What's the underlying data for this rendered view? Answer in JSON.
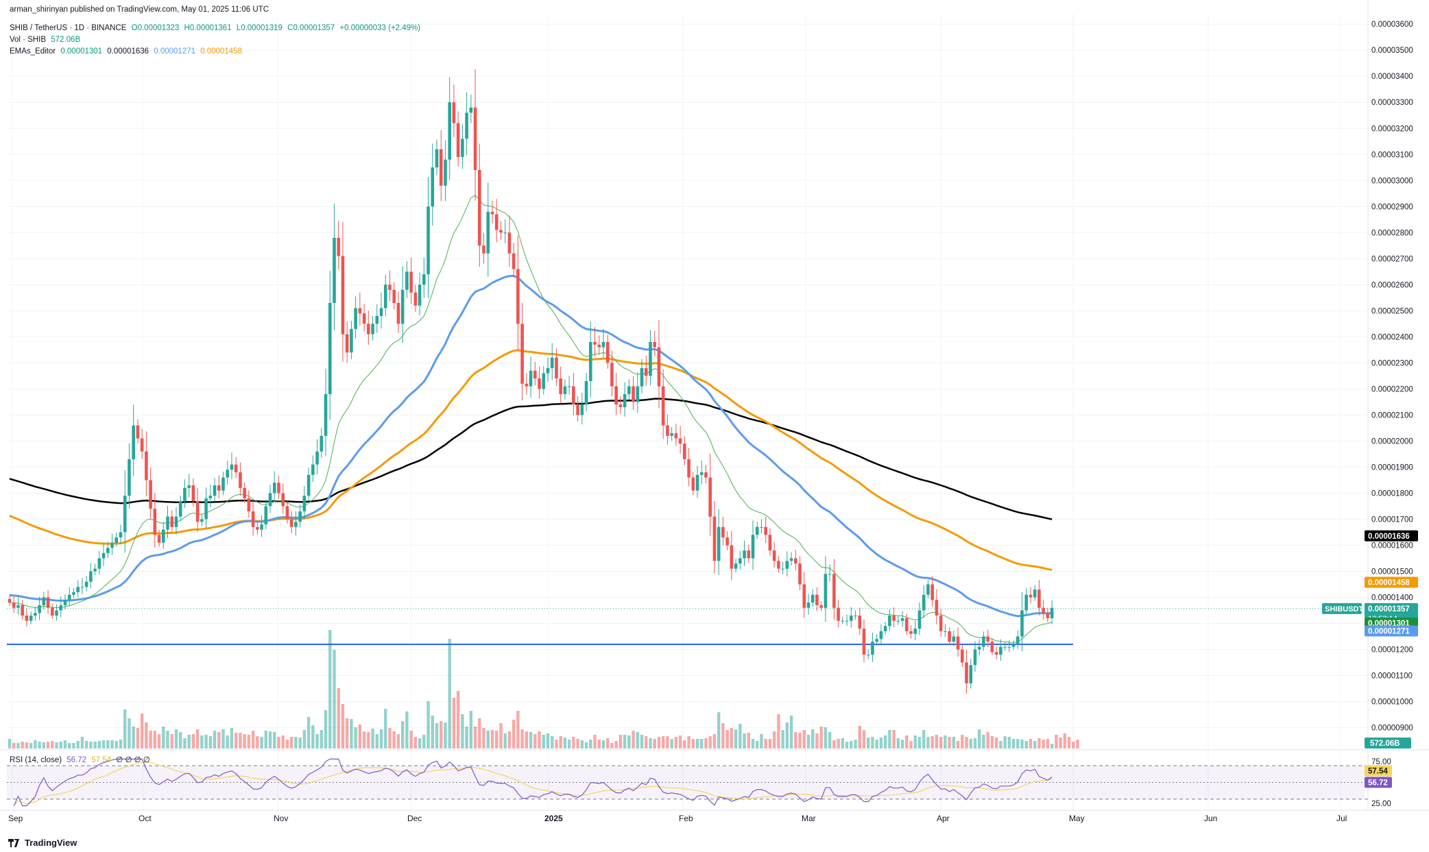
{
  "publisher": "arman_shirinyan published on TradingView.com, May 01, 2025 11:06 UTC",
  "symbol_line": {
    "symbol": "SHIB / TetherUS · 1D · BINANCE",
    "open": "O0.00001323",
    "high": "H0.00001361",
    "low": "L0.00001319",
    "close": "C0.00001357",
    "change": "+0.00000033 (+2.49%)"
  },
  "vol_line": {
    "label": "Vol · SHIB",
    "value": "572.06B"
  },
  "ema_line": {
    "label": "EMAs_Editor",
    "v1": "0.00001301",
    "v2": "0.00001636",
    "v3": "0.00001271",
    "v4": "0.00001458"
  },
  "rsi_line": {
    "label": "RSI (14, close)",
    "rsi": "56.72",
    "ma": "57.54",
    "extra": "∅ ∅ ∅ ∅"
  },
  "brand": "TradingView",
  "colors": {
    "up": "#26a69a",
    "down": "#ef5350",
    "ema_black": "#000000",
    "ema_orange": "#f59a00",
    "ema_blue": "#5b9bef",
    "ema_green": "#4caf50",
    "support": "#2962ff",
    "rsi": "#7e57c2",
    "rsi_ma": "#f7d55a"
  },
  "chart_data": [
    {
      "type": "candlestick",
      "title": "SHIB / TetherUS · 1D · BINANCE",
      "y_ticks": [
        "0.00000900",
        "0.00001000",
        "0.00001100",
        "0.00001200",
        "0.00001300",
        "0.00001400",
        "0.00001500",
        "0.00001600",
        "0.00001700",
        "0.00001800",
        "0.00001900",
        "0.00002000",
        "0.00002100",
        "0.00002200",
        "0.00002300",
        "0.00002400",
        "0.00002500",
        "0.00002600",
        "0.00002700",
        "0.00002800",
        "0.00002900",
        "0.00003000",
        "0.00003100",
        "0.00003200",
        "0.00003300",
        "0.00003400",
        "0.00003500",
        "0.00003600"
      ],
      "x_ticks": [
        "Sep",
        "Oct",
        "Nov",
        "Dec",
        "2025",
        "Feb",
        "Mar",
        "Apr",
        "May",
        "Jun",
        "Jul"
      ],
      "ylim": [
        8.2e-06,
        3.64e-05
      ],
      "price_labels": [
        {
          "name": "EMA black",
          "value": 1.636e-05,
          "text": "0.00001636",
          "color": "#000000"
        },
        {
          "name": "EMA orange",
          "value": 1.458e-05,
          "text": "0.00001458",
          "color": "#f59a00"
        },
        {
          "name": "SHIBUSDT",
          "value": 1.357e-05,
          "text": "0.00001357",
          "countdown": "12:53:14",
          "color": "#26a69a"
        },
        {
          "name": "EMA green",
          "value": 1.301e-05,
          "text": "0.00001301",
          "color": "#1b8f3a"
        },
        {
          "name": "EMA blue",
          "value": 1.271e-05,
          "text": "0.00001271",
          "color": "#5b9bef"
        }
      ],
      "symbol_tag": "SHIBUSDT",
      "support_level": 1.22e-05,
      "current_price": 1.357e-05,
      "closes": [
        1.38e-05,
        1.36e-05,
        1.37e-05,
        1.33e-05,
        1.31e-05,
        1.33e-05,
        1.34e-05,
        1.37e-05,
        1.4e-05,
        1.36e-05,
        1.33e-05,
        1.35e-05,
        1.37e-05,
        1.39e-05,
        1.41e-05,
        1.42e-05,
        1.44e-05,
        1.44e-05,
        1.46e-05,
        1.5e-05,
        1.51e-05,
        1.55e-05,
        1.57e-05,
        1.59e-05,
        1.61e-05,
        1.63e-05,
        1.65e-05,
        1.79e-05,
        1.93e-05,
        2.06e-05,
        2.01e-05,
        1.96e-05,
        1.85e-05,
        1.74e-05,
        1.64e-05,
        1.61e-05,
        1.66e-05,
        1.71e-05,
        1.67e-05,
        1.71e-05,
        1.77e-05,
        1.82e-05,
        1.83e-05,
        1.77e-05,
        1.69e-05,
        1.7e-05,
        1.78e-05,
        1.79e-05,
        1.83e-05,
        1.81e-05,
        1.86e-05,
        1.89e-05,
        1.91e-05,
        1.88e-05,
        1.82e-05,
        1.78e-05,
        1.73e-05,
        1.67e-05,
        1.66e-05,
        1.68e-05,
        1.75e-05,
        1.8e-05,
        1.84e-05,
        1.8e-05,
        1.75e-05,
        1.7e-05,
        1.67e-05,
        1.69e-05,
        1.73e-05,
        1.79e-05,
        1.87e-05,
        1.91e-05,
        1.96e-05,
        2.02e-05,
        2.18e-05,
        2.53e-05,
        2.78e-05,
        2.71e-05,
        2.41e-05,
        2.34e-05,
        2.43e-05,
        2.51e-05,
        2.49e-05,
        2.45e-05,
        2.41e-05,
        2.45e-05,
        2.48e-05,
        2.51e-05,
        2.6e-05,
        2.58e-05,
        2.53e-05,
        2.45e-05,
        2.58e-05,
        2.65e-05,
        2.57e-05,
        2.52e-05,
        2.6e-05,
        2.64e-05,
        2.9e-05,
        3.05e-05,
        3.12e-05,
        2.98e-05,
        3.08e-05,
        3.3e-05,
        3.22e-05,
        3.09e-05,
        3.16e-05,
        3.26e-05,
        3.28e-05,
        3.04e-05,
        2.75e-05,
        2.72e-05,
        2.88e-05,
        2.87e-05,
        2.81e-05,
        2.8e-05,
        2.8e-05,
        2.72e-05,
        2.66e-05,
        2.45e-05,
        2.22e-05,
        2.21e-05,
        2.27e-05,
        2.24e-05,
        2.2e-05,
        2.26e-05,
        2.28e-05,
        2.32e-05,
        2.24e-05,
        2.18e-05,
        2.21e-05,
        2.21e-05,
        2.14e-05,
        2.1e-05,
        2.14e-05,
        2.23e-05,
        2.38e-05,
        2.37e-05,
        2.36e-05,
        2.38e-05,
        2.3e-05,
        2.21e-05,
        2.14e-05,
        2.13e-05,
        2.18e-05,
        2.21e-05,
        2.15e-05,
        2.21e-05,
        2.28e-05,
        2.25e-05,
        2.38e-05,
        2.36e-05,
        2.21e-05,
        2.06e-05,
        2.02e-05,
        2.03e-05,
        2.01e-05,
        1.99e-05,
        1.93e-05,
        1.86e-05,
        1.81e-05,
        1.87e-05,
        1.88e-05,
        1.86e-05,
        1.71e-05,
        1.54e-05,
        1.67e-05,
        1.63e-05,
        1.6e-05,
        1.51e-05,
        1.53e-05,
        1.55e-05,
        1.58e-05,
        1.55e-05,
        1.64e-05,
        1.67e-05,
        1.67e-05,
        1.64e-05,
        1.58e-05,
        1.54e-05,
        1.51e-05,
        1.51e-05,
        1.54e-05,
        1.55e-05,
        1.53e-05,
        1.45e-05,
        1.36e-05,
        1.38e-05,
        1.41e-05,
        1.37e-05,
        1.36e-05,
        1.49e-05,
        1.49e-05,
        1.36e-05,
        1.31e-05,
        1.31e-05,
        1.31e-05,
        1.33e-05,
        1.33e-05,
        1.28e-05,
        1.18e-05,
        1.18e-05,
        1.23e-05,
        1.24e-05,
        1.27e-05,
        1.29e-05,
        1.33e-05,
        1.31e-05,
        1.31e-05,
        1.32e-05,
        1.27e-05,
        1.26e-05,
        1.28e-05,
        1.35e-05,
        1.41e-05,
        1.45e-05,
        1.39e-05,
        1.33e-05,
        1.27e-05,
        1.27e-05,
        1.23e-05,
        1.25e-05,
        1.2e-05,
        1.15e-05,
        1.07e-05,
        1.14e-05,
        1.2e-05,
        1.21e-05,
        1.25e-05,
        1.23e-05,
        1.19e-05,
        1.18e-05,
        1.21e-05,
        1.21e-05,
        1.21e-05,
        1.22e-05,
        1.25e-05,
        1.35e-05,
        1.41e-05,
        1.4e-05,
        1.43e-05,
        1.36e-05,
        1.34e-05,
        1.32e-05,
        1.36e-05
      ],
      "volumes": [
        [
          0,
          14
        ],
        [
          1,
          8
        ],
        [
          2,
          8
        ],
        [
          3,
          10
        ],
        [
          4,
          9
        ],
        [
          5,
          8
        ],
        [
          6,
          12
        ],
        [
          7,
          10
        ],
        [
          8,
          9
        ],
        [
          9,
          10
        ],
        [
          10,
          11
        ],
        [
          11,
          9
        ],
        [
          12,
          10
        ],
        [
          13,
          12
        ],
        [
          14,
          8
        ],
        [
          15,
          8
        ],
        [
          16,
          11
        ],
        [
          17,
          17
        ],
        [
          18,
          11
        ],
        [
          19,
          10
        ],
        [
          20,
          10
        ],
        [
          21,
          11
        ],
        [
          22,
          12
        ],
        [
          23,
          12
        ],
        [
          24,
          12
        ],
        [
          25,
          11
        ],
        [
          26,
          13
        ],
        [
          27,
          57
        ],
        [
          28,
          44
        ],
        [
          29,
          32
        ],
        [
          30,
          30
        ],
        [
          31,
          51
        ],
        [
          32,
          38
        ],
        [
          33,
          26
        ],
        [
          34,
          26
        ],
        [
          35,
          21
        ],
        [
          36,
          32
        ],
        [
          37,
          26
        ],
        [
          38,
          21
        ],
        [
          39,
          28
        ],
        [
          40,
          24
        ],
        [
          41,
          15
        ],
        [
          42,
          20
        ],
        [
          43,
          21
        ],
        [
          44,
          28
        ],
        [
          45,
          19
        ],
        [
          46,
          20
        ],
        [
          47,
          18
        ],
        [
          48,
          26
        ],
        [
          49,
          24
        ],
        [
          50,
          28
        ],
        [
          51,
          19
        ],
        [
          52,
          30
        ],
        [
          53,
          23
        ],
        [
          54,
          23
        ],
        [
          55,
          21
        ],
        [
          56,
          20
        ],
        [
          57,
          26
        ],
        [
          58,
          18
        ],
        [
          59,
          17
        ],
        [
          60,
          26
        ],
        [
          61,
          25
        ],
        [
          62,
          24
        ],
        [
          63,
          17
        ],
        [
          64,
          19
        ],
        [
          65,
          13
        ],
        [
          66,
          17
        ],
        [
          67,
          17
        ],
        [
          68,
          16
        ],
        [
          69,
          27
        ],
        [
          70,
          46
        ],
        [
          71,
          34
        ],
        [
          72,
          21
        ],
        [
          73,
          27
        ],
        [
          74,
          56
        ],
        [
          75,
          173
        ],
        [
          76,
          144
        ],
        [
          77,
          88
        ],
        [
          78,
          65
        ],
        [
          79,
          44
        ],
        [
          80,
          43
        ],
        [
          81,
          31
        ],
        [
          82,
          35
        ],
        [
          83,
          25
        ],
        [
          84,
          24
        ],
        [
          85,
          29
        ],
        [
          86,
          21
        ],
        [
          87,
          28
        ],
        [
          88,
          58
        ],
        [
          89,
          30
        ],
        [
          90,
          25
        ],
        [
          91,
          21
        ],
        [
          92,
          40
        ],
        [
          93,
          54
        ],
        [
          94,
          26
        ],
        [
          95,
          17
        ],
        [
          96,
          15
        ],
        [
          97,
          20
        ],
        [
          98,
          69
        ],
        [
          99,
          48
        ],
        [
          100,
          37
        ],
        [
          101,
          40
        ],
        [
          102,
          38
        ],
        [
          103,
          160
        ],
        [
          104,
          74
        ],
        [
          105,
          84
        ],
        [
          106,
          50
        ],
        [
          107,
          32
        ],
        [
          108,
          55
        ],
        [
          109,
          32
        ],
        [
          110,
          44
        ],
        [
          111,
          30
        ],
        [
          112,
          26
        ],
        [
          113,
          27
        ],
        [
          114,
          26
        ],
        [
          115,
          37
        ],
        [
          116,
          22
        ],
        [
          117,
          25
        ],
        [
          118,
          42
        ],
        [
          119,
          55
        ],
        [
          120,
          28
        ],
        [
          121,
          25
        ],
        [
          122,
          24
        ],
        [
          123,
          21
        ],
        [
          124,
          25
        ],
        [
          125,
          20
        ],
        [
          126,
          22
        ],
        [
          127,
          18
        ],
        [
          128,
          13
        ],
        [
          129,
          18
        ],
        [
          130,
          16
        ],
        [
          131,
          13
        ],
        [
          132,
          17
        ],
        [
          133,
          14
        ],
        [
          134,
          12
        ],
        [
          135,
          9
        ],
        [
          136,
          13
        ],
        [
          137,
          20
        ],
        [
          138,
          13
        ],
        [
          139,
          12
        ],
        [
          140,
          15
        ],
        [
          141,
          8
        ],
        [
          142,
          11
        ],
        [
          143,
          20
        ],
        [
          144,
          20
        ],
        [
          145,
          19
        ],
        [
          146,
          26
        ],
        [
          147,
          24
        ],
        [
          148,
          20
        ],
        [
          149,
          18
        ],
        [
          150,
          15
        ],
        [
          151,
          14
        ],
        [
          152,
          17
        ],
        [
          153,
          18
        ],
        [
          154,
          18
        ],
        [
          155,
          14
        ],
        [
          156,
          17
        ],
        [
          157,
          19
        ],
        [
          158,
          12
        ],
        [
          159,
          18
        ],
        [
          160,
          14
        ],
        [
          161,
          14
        ],
        [
          162,
          14
        ],
        [
          163,
          15
        ],
        [
          164,
          18
        ],
        [
          165,
          21
        ],
        [
          166,
          53
        ],
        [
          167,
          37
        ],
        [
          168,
          27
        ],
        [
          169,
          30
        ],
        [
          170,
          28
        ],
        [
          171,
          36
        ],
        [
          172,
          22
        ],
        [
          173,
          23
        ],
        [
          174,
          14
        ],
        [
          175,
          11
        ],
        [
          176,
          21
        ],
        [
          177,
          14
        ],
        [
          178,
          14
        ],
        [
          179,
          25
        ],
        [
          180,
          50
        ],
        [
          181,
          27
        ],
        [
          182,
          38
        ],
        [
          183,
          48
        ],
        [
          184,
          24
        ],
        [
          185,
          23
        ],
        [
          186,
          27
        ],
        [
          187,
          20
        ],
        [
          188,
          28
        ],
        [
          189,
          22
        ],
        [
          190,
          32
        ],
        [
          191,
          31
        ],
        [
          192,
          24
        ],
        [
          193,
          12
        ],
        [
          194,
          14
        ],
        [
          195,
          15
        ],
        [
          196,
          10
        ],
        [
          197,
          11
        ],
        [
          198,
          13
        ],
        [
          199,
          33
        ],
        [
          200,
          27
        ],
        [
          201,
          16
        ],
        [
          202,
          17
        ],
        [
          203,
          13
        ],
        [
          204,
          16
        ],
        [
          205,
          19
        ],
        [
          206,
          27
        ],
        [
          207,
          27
        ],
        [
          208,
          15
        ],
        [
          209,
          13
        ],
        [
          210,
          19
        ],
        [
          211,
          11
        ],
        [
          212,
          19
        ],
        [
          213,
          17
        ],
        [
          214,
          27
        ],
        [
          215,
          17
        ],
        [
          216,
          18
        ],
        [
          217,
          20
        ],
        [
          218,
          17
        ],
        [
          219,
          19
        ],
        [
          220,
          17
        ],
        [
          221,
          17
        ],
        [
          222,
          11
        ],
        [
          223,
          20
        ],
        [
          224,
          17
        ],
        [
          225,
          14
        ],
        [
          226,
          15
        ],
        [
          227,
          28
        ],
        [
          228,
          20
        ],
        [
          229,
          24
        ],
        [
          230,
          18
        ],
        [
          231,
          16
        ],
        [
          232,
          11
        ],
        [
          233,
          18
        ],
        [
          234,
          17
        ],
        [
          235,
          14
        ],
        [
          236,
          14
        ],
        [
          237,
          13
        ],
        [
          238,
          11
        ],
        [
          239,
          14
        ],
        [
          240,
          11
        ],
        [
          241,
          15
        ],
        [
          242,
          13
        ],
        [
          243,
          14
        ],
        [
          244,
          7
        ],
        [
          245,
          20
        ],
        [
          246,
          16
        ],
        [
          247,
          22
        ],
        [
          248,
          17
        ],
        [
          249,
          10
        ],
        [
          250,
          13
        ]
      ],
      "volume_label": "572.06B"
    },
    {
      "type": "line",
      "title": "RSI (14, close)",
      "y_ticks": [
        "75.00",
        "25.00"
      ],
      "ylim": [
        20,
        80
      ],
      "bands": [
        70,
        50,
        30
      ],
      "series": [
        {
          "name": "RSI",
          "value_label": "56.72",
          "color": "#7e57c2"
        },
        {
          "name": "RSI MA",
          "value_label": "57.54",
          "color": "#f7d55a"
        }
      ]
    }
  ]
}
